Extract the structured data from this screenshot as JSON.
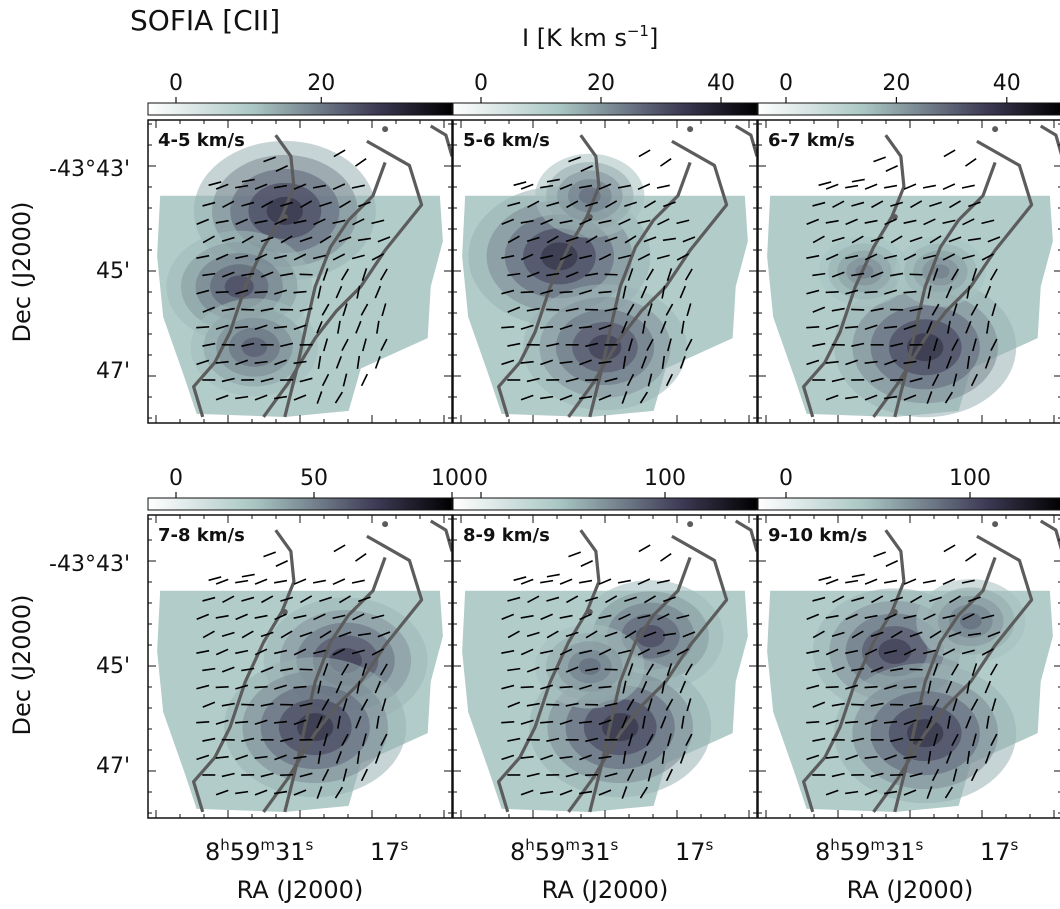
{
  "figure": {
    "title": "SOFIA [CII]",
    "colorbar_label": "I [K km s",
    "colorbar_label_sup": "−1",
    "colorbar_label_end": "]",
    "y_axis_label": "Dec (J2000)",
    "x_axis_label": "RA (J2000)",
    "dec_ticks": [
      "-43°43'",
      "45'",
      "47'"
    ],
    "ra_tick_main": "8",
    "ra_tick_h": "h",
    "ra_tick_59": "59",
    "ra_tick_m": "m",
    "ra_tick_31": "31",
    "ra_tick_s": "s",
    "ra_tick_17": "17",
    "ra_tick_s2": "s"
  },
  "colors": {
    "cmap_low": "#ffffff",
    "cmap_mid": "#a9c6c3",
    "cmap_high": "#3d3a55",
    "cmap_peak": "#000000",
    "contour": "#5c5c5c",
    "vectors": "#000000"
  },
  "chart_data": {
    "type": "heatmap",
    "description_units": "Integrated intensity I [K km s^-1] channel maps with polarization vectors and contours",
    "panels": [
      {
        "label": "4-5 km/s",
        "colorbar_ticks": [
          "0",
          "20"
        ],
        "cbar_range": [
          0,
          38
        ],
        "tick_values": [
          0,
          20
        ],
        "blobs": [
          {
            "ra": 0.45,
            "dec": 0.3,
            "w": 1.0
          },
          {
            "ra": 0.3,
            "dec": 0.55,
            "w": 0.8
          },
          {
            "ra": 0.35,
            "dec": 0.75,
            "w": 0.7
          }
        ]
      },
      {
        "label": "5-6 km/s",
        "colorbar_ticks": [
          "0",
          "20",
          "40"
        ],
        "cbar_range": [
          0,
          46
        ],
        "tick_values": [
          0,
          20,
          40
        ],
        "blobs": [
          {
            "ra": 0.35,
            "dec": 0.45,
            "w": 1.0
          },
          {
            "ra": 0.5,
            "dec": 0.75,
            "w": 0.9
          },
          {
            "ra": 0.45,
            "dec": 0.25,
            "w": 0.6
          }
        ]
      },
      {
        "label": "6-7 km/s",
        "colorbar_ticks": [
          "0",
          "20",
          "40"
        ],
        "cbar_range": [
          0,
          50
        ],
        "tick_values": [
          0,
          20,
          40
        ],
        "blobs": [
          {
            "ra": 0.55,
            "dec": 0.75,
            "w": 1.0
          },
          {
            "ra": 0.35,
            "dec": 0.5,
            "w": 0.5
          },
          {
            "ra": 0.6,
            "dec": 0.5,
            "w": 0.5
          }
        ]
      },
      {
        "label": "7-8 km/s",
        "colorbar_ticks": [
          "0",
          "50",
          "100"
        ],
        "cbar_range": [
          0,
          100
        ],
        "tick_values": [
          0,
          50,
          100
        ],
        "blobs": [
          {
            "ra": 0.65,
            "dec": 0.48,
            "w": 0.9
          },
          {
            "ra": 0.55,
            "dec": 0.7,
            "w": 1.0
          }
        ]
      },
      {
        "label": "8-9 km/s",
        "colorbar_ticks": [
          "0",
          "100"
        ],
        "cbar_range": [
          0,
          150
        ],
        "tick_values": [
          0,
          100
        ],
        "blobs": [
          {
            "ra": 0.65,
            "dec": 0.4,
            "w": 0.8
          },
          {
            "ra": 0.55,
            "dec": 0.7,
            "w": 1.0
          },
          {
            "ra": 0.45,
            "dec": 0.5,
            "w": 0.6
          }
        ]
      },
      {
        "label": "9-10 km/s",
        "colorbar_ticks": [
          "0",
          "100"
        ],
        "cbar_range": [
          0,
          150
        ],
        "tick_values": [
          0,
          100
        ],
        "blobs": [
          {
            "ra": 0.45,
            "dec": 0.45,
            "w": 0.9
          },
          {
            "ra": 0.55,
            "dec": 0.72,
            "w": 1.0
          },
          {
            "ra": 0.7,
            "dec": 0.35,
            "w": 0.6
          }
        ]
      }
    ]
  }
}
